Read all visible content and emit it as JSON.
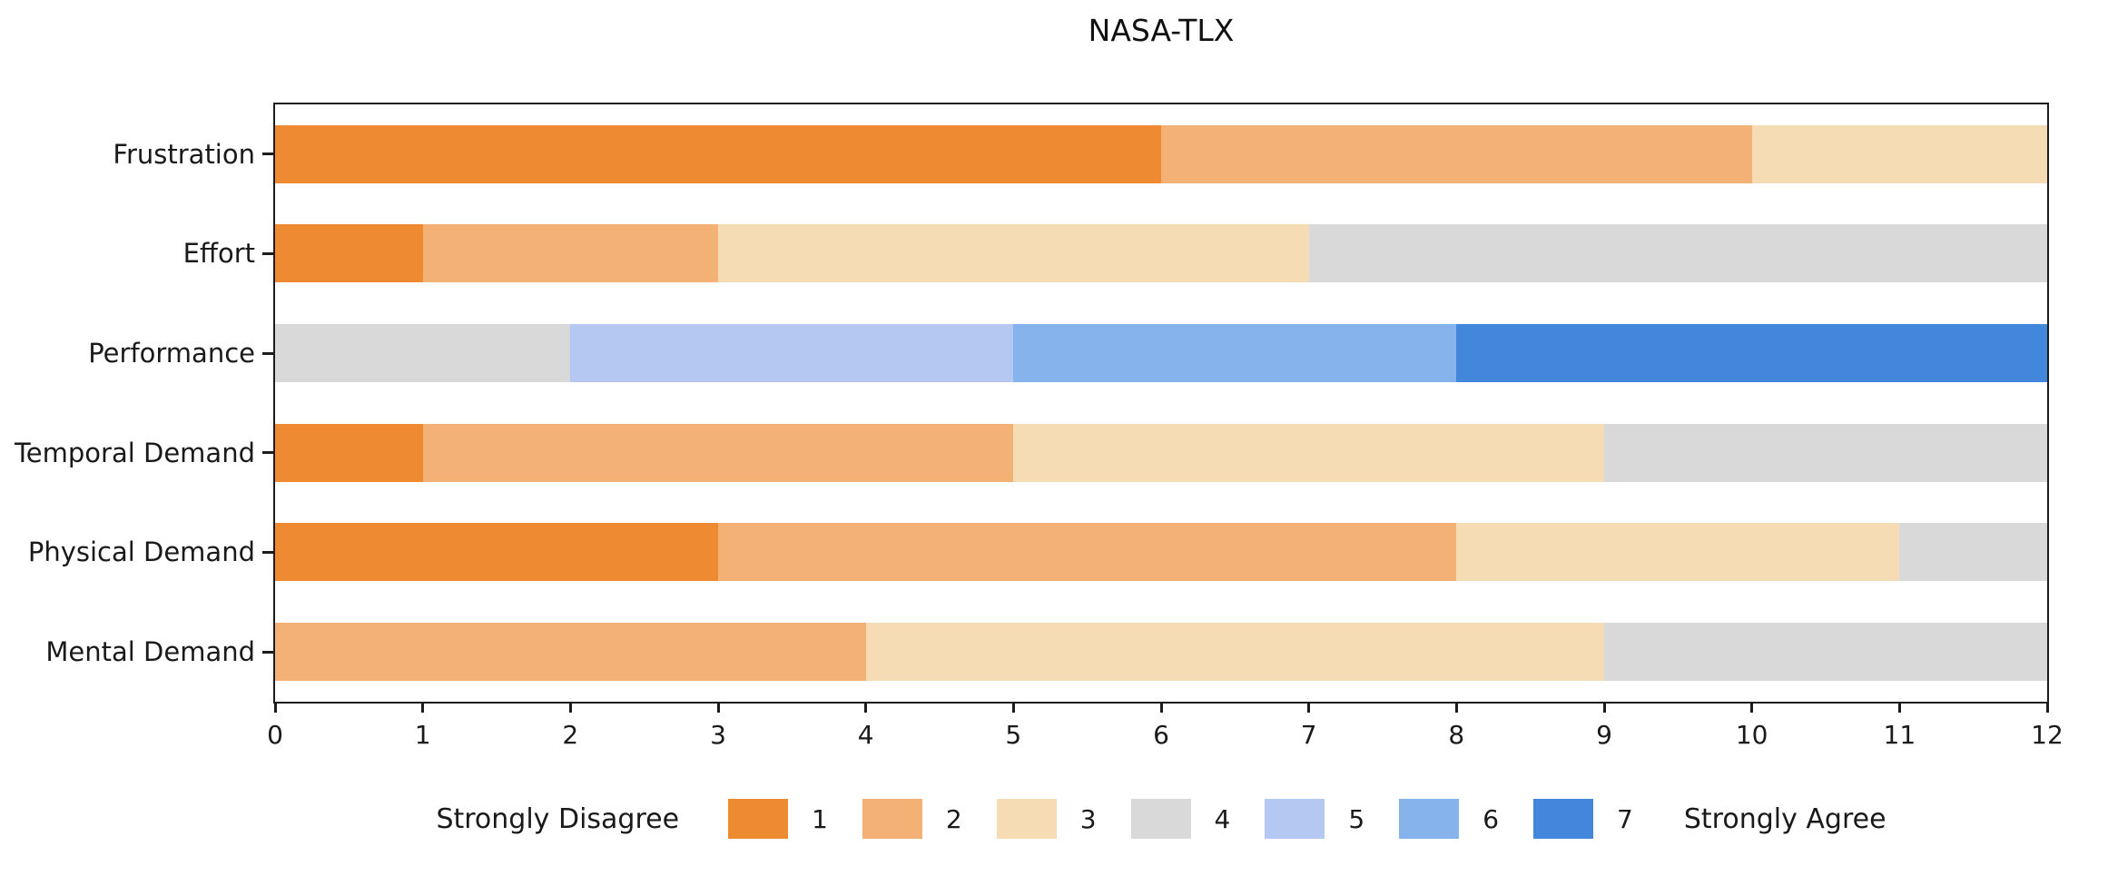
{
  "chart_data": {
    "type": "bar",
    "orientation": "horizontal",
    "stacked": true,
    "title": "NASA-TLX",
    "xlabel": "",
    "ylabel": "",
    "xlim": [
      0,
      12
    ],
    "grid": false,
    "respondents_total": 12,
    "categories_top_to_bottom": [
      "Frustration",
      "Effort",
      "Performance",
      "Temporal Demand",
      "Physical Demand",
      "Mental Demand"
    ],
    "x_ticks": [
      "0",
      "1",
      "2",
      "3",
      "4",
      "5",
      "6",
      "7",
      "8",
      "9",
      "10",
      "11",
      "12"
    ],
    "series": [
      {
        "name": "1",
        "color": "#ee8a32",
        "values": [
          6,
          1,
          0,
          1,
          3,
          0
        ]
      },
      {
        "name": "2",
        "color": "#f4b175",
        "values": [
          4,
          2,
          0,
          4,
          5,
          4
        ]
      },
      {
        "name": "3",
        "color": "#f6dcb4",
        "values": [
          2,
          4,
          0,
          4,
          3,
          5
        ]
      },
      {
        "name": "4",
        "color": "#d9d9d9",
        "values": [
          0,
          5,
          2,
          3,
          1,
          3
        ]
      },
      {
        "name": "5",
        "color": "#b4c8f2",
        "values": [
          0,
          0,
          3,
          0,
          0,
          0
        ]
      },
      {
        "name": "6",
        "color": "#86b3eb",
        "values": [
          0,
          0,
          3,
          0,
          0,
          0
        ]
      },
      {
        "name": "7",
        "color": "#4287db",
        "values": [
          0,
          0,
          4,
          0,
          0,
          0
        ]
      }
    ],
    "legend": {
      "position": "bottom-center",
      "left_label": "Strongly Disagree",
      "right_label": "Strongly Agree",
      "entries": [
        "1",
        "2",
        "3",
        "4",
        "5",
        "6",
        "7"
      ]
    },
    "axis_color": "#1c1c1c",
    "text_color": "#1a1a1a"
  }
}
